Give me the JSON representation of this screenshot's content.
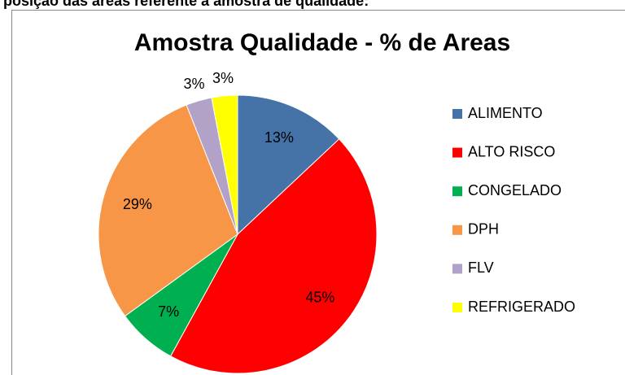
{
  "header": {
    "text": "posição das áreas referente à amostra de qualidade:"
  },
  "chart_data": {
    "type": "pie",
    "title": "Amostra Qualidade - % de Areas",
    "categories": [
      "ALIMENTO",
      "ALTO RISCO",
      "CONGELADO",
      "DPH",
      "FLV",
      "REFRIGERADO"
    ],
    "values": [
      13,
      45,
      7,
      29,
      3,
      3
    ],
    "value_labels": [
      "13%",
      "45%",
      "7%",
      "29%",
      "3%",
      "3%"
    ],
    "colors": [
      "#4572a7",
      "#ff0000",
      "#00b050",
      "#f79646",
      "#b3a2c7",
      "#ffff00"
    ],
    "legend": "right"
  }
}
